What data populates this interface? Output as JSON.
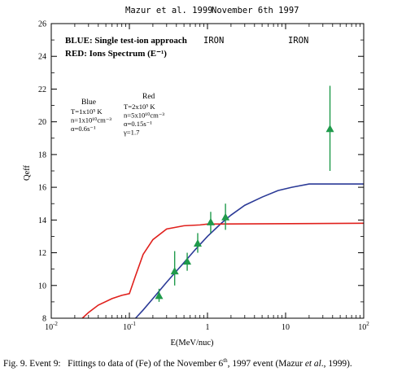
{
  "chart_data": {
    "type": "scatter",
    "title_left": "Mazur et al. 1999",
    "title_right": "November 6th 1997",
    "xlabel": "E(MeV/nuc)",
    "ylabel": "Qeff",
    "x_scale": "log",
    "xlim": [
      0.01,
      100
    ],
    "ylim": [
      8,
      26
    ],
    "x_ticks": [
      {
        "value": 0.01,
        "base": "10",
        "exp": "-2"
      },
      {
        "value": 0.1,
        "base": "10",
        "exp": "-1"
      },
      {
        "value": 1,
        "base": "1",
        "exp": ""
      },
      {
        "value": 10,
        "base": "10",
        "exp": ""
      },
      {
        "value": 100,
        "base": "10",
        "exp": "2"
      }
    ],
    "y_ticks": [
      8,
      10,
      12,
      14,
      16,
      18,
      20,
      22,
      24,
      26
    ],
    "legend_lines": [
      "BLUE: Single test-ion approach",
      "RED: Ions Spectrum (E⁻¹)"
    ],
    "iron_labels": [
      "IRON",
      "IRON"
    ],
    "blue_params_title": "Blue",
    "blue_params": [
      "T=1x10⁵ K",
      "n=1x10¹⁰cm⁻³",
      "α=0.6s⁻¹"
    ],
    "red_params_title": "Red",
    "red_params": [
      "T=2x10⁵ K",
      "n=5x10¹⁰cm⁻³",
      "α=0.15s⁻¹",
      "γ=1.7"
    ],
    "series": [
      {
        "name": "BLUE",
        "kind": "line",
        "color": "#2b3a97",
        "x": [
          0.12,
          0.15,
          0.2,
          0.3,
          0.5,
          0.7,
          1,
          1.5,
          2,
          3,
          5,
          8,
          12,
          20,
          100
        ],
        "y": [
          8.0,
          8.5,
          9.2,
          10.2,
          11.4,
          12.2,
          13.0,
          13.8,
          14.3,
          14.9,
          15.4,
          15.8,
          16.0,
          16.2,
          16.2
        ]
      },
      {
        "name": "RED",
        "kind": "line",
        "color": "#e0201c",
        "x": [
          0.025,
          0.03,
          0.04,
          0.06,
          0.08,
          0.1,
          0.12,
          0.15,
          0.2,
          0.3,
          0.5,
          0.8,
          1,
          100
        ],
        "y": [
          8.0,
          8.35,
          8.8,
          9.2,
          9.4,
          9.5,
          10.6,
          11.9,
          12.8,
          13.45,
          13.65,
          13.7,
          13.75,
          13.8
        ]
      },
      {
        "kind": "points",
        "color": "#1f9a4b",
        "x": [
          0.24,
          0.38,
          0.55,
          0.75,
          1.1,
          1.7,
          37
        ],
        "y": [
          9.4,
          10.9,
          11.5,
          12.6,
          13.9,
          14.2,
          19.6
        ],
        "y_low": [
          9.0,
          10.0,
          10.9,
          12.0,
          13.2,
          13.4,
          17.0
        ],
        "y_high": [
          9.8,
          12.1,
          12.0,
          13.2,
          14.5,
          15.0,
          22.2
        ]
      }
    ]
  },
  "caption": {
    "fig_label": "Fig. 9. Event 9:",
    "text_1": "Fittings to data of (Fe) of the November 6",
    "text_sup": "th",
    "text_2": ", 1997 event (Mazur ",
    "text_italic": "et al",
    "text_3": "., 1999)."
  }
}
